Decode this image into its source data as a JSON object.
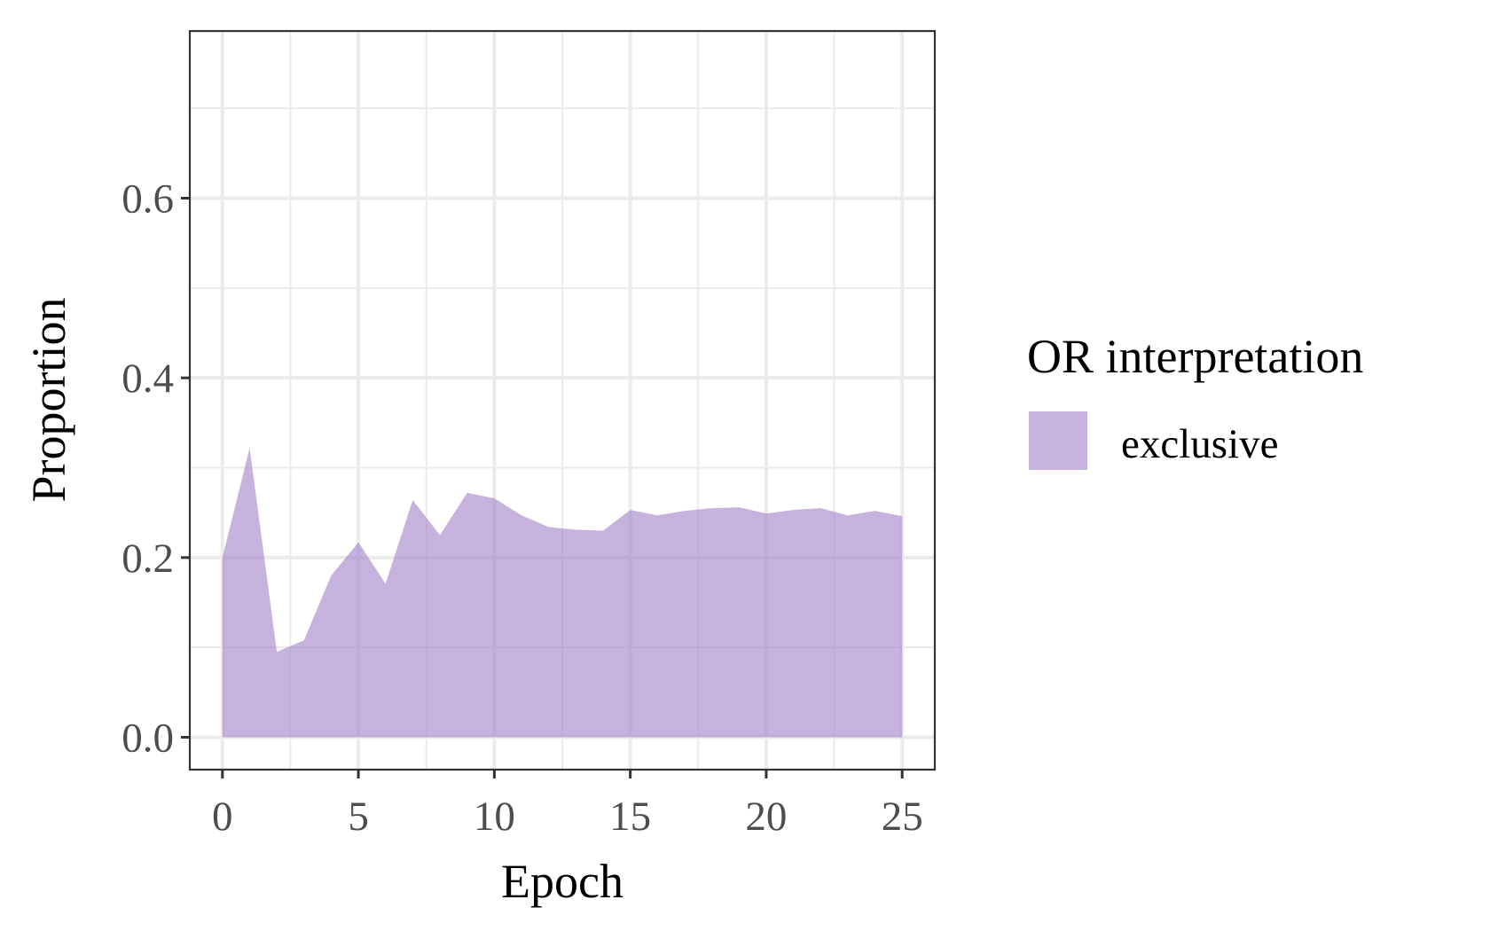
{
  "chart_data": {
    "type": "area",
    "x_label": "Epoch",
    "y_label": "Proportion",
    "x": [
      0,
      1,
      2,
      3,
      4,
      5,
      6,
      7,
      8,
      9,
      10,
      11,
      12,
      13,
      14,
      15,
      16,
      17,
      18,
      19,
      20,
      21,
      22,
      23,
      24,
      25
    ],
    "series": [
      {
        "name": "exclusive",
        "color": "#9e80c6",
        "opacity": 0.6,
        "values": [
          0.2,
          0.322,
          0.095,
          0.108,
          0.18,
          0.217,
          0.171,
          0.264,
          0.225,
          0.272,
          0.266,
          0.247,
          0.234,
          0.231,
          0.23,
          0.253,
          0.247,
          0.252,
          0.255,
          0.256,
          0.249,
          0.253,
          0.255,
          0.247,
          0.252,
          0.246
        ]
      }
    ],
    "legend_title": "OR interpretation",
    "legend": "right",
    "xlim": [
      -1.2,
      26.2
    ],
    "xticks": [
      0,
      5,
      10,
      15,
      20,
      25
    ],
    "x_minor_grid": [
      2.5,
      7.5,
      12.5,
      17.5,
      22.5
    ],
    "ylim": [
      -0.036,
      0.786
    ],
    "yticks": [
      {
        "value": 0,
        "label": "0.0"
      },
      0.2,
      0.4,
      0.6
    ],
    "y_minor_grid": [
      0.1,
      0.3,
      0.5,
      0.7
    ],
    "grid": true
  }
}
